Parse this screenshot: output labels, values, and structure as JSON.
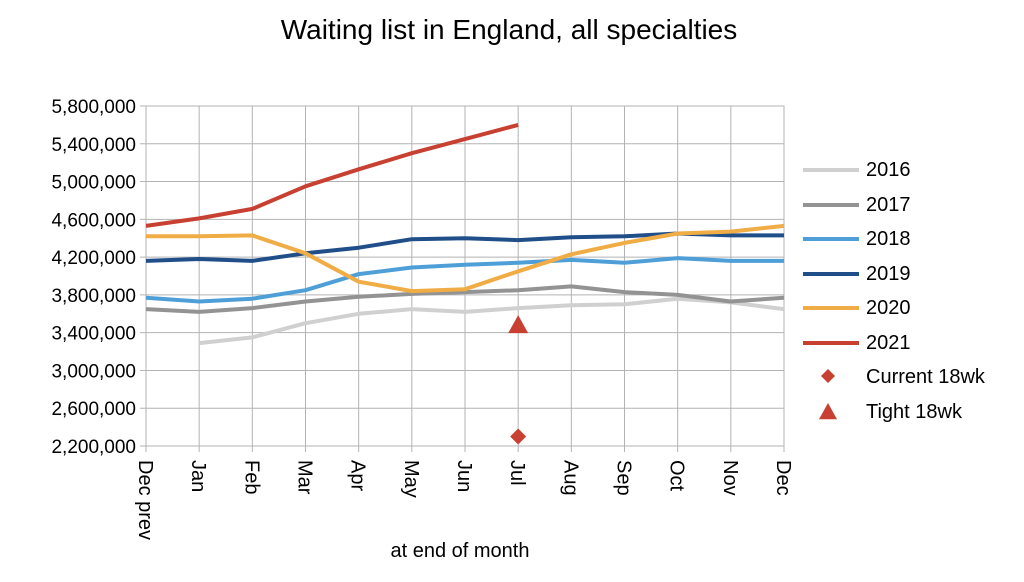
{
  "chart_data": {
    "type": "line",
    "title": "Waiting list in England, all specialties",
    "xlabel": "at end of month",
    "ylabel": "",
    "ylim": [
      2200000,
      5800000
    ],
    "yticks": [
      2200000,
      2600000,
      3000000,
      3400000,
      3800000,
      4200000,
      4600000,
      5000000,
      5400000,
      5800000
    ],
    "ytick_labels": [
      "2,200,000",
      "2,600,000",
      "3,000,000",
      "3,400,000",
      "3,800,000",
      "4,200,000",
      "4,600,000",
      "5,000,000",
      "5,400,000",
      "5,800,000"
    ],
    "categories": [
      "Dec prev",
      "Jan",
      "Feb",
      "Mar",
      "Apr",
      "May",
      "Jun",
      "Jul",
      "Aug",
      "Sep",
      "Oct",
      "Nov",
      "Dec"
    ],
    "grid": true,
    "legend_position": "right",
    "series": [
      {
        "name": "2016",
        "color": "#d0d0d0",
        "kind": "line",
        "values": [
          null,
          3290000,
          3350000,
          3500000,
          3600000,
          3650000,
          3620000,
          3660000,
          3690000,
          3700000,
          3760000,
          3720000,
          3650000
        ]
      },
      {
        "name": "2017",
        "color": "#939393",
        "kind": "line",
        "values": [
          3650000,
          3620000,
          3660000,
          3730000,
          3780000,
          3810000,
          3830000,
          3850000,
          3890000,
          3830000,
          3800000,
          3730000,
          3770000
        ]
      },
      {
        "name": "2018",
        "color": "#4e9fd8",
        "kind": "line",
        "values": [
          3770000,
          3730000,
          3760000,
          3850000,
          4020000,
          4090000,
          4120000,
          4140000,
          4170000,
          4140000,
          4190000,
          4160000,
          4160000
        ]
      },
      {
        "name": "2019",
        "color": "#1f4e89",
        "kind": "line",
        "values": [
          4160000,
          4180000,
          4160000,
          4240000,
          4300000,
          4390000,
          4400000,
          4380000,
          4410000,
          4420000,
          4450000,
          4430000,
          4430000
        ]
      },
      {
        "name": "2020",
        "color": "#f0ac45",
        "kind": "line",
        "values": [
          4420000,
          4420000,
          4430000,
          4240000,
          3940000,
          3840000,
          3860000,
          4050000,
          4230000,
          4350000,
          4450000,
          4470000,
          4530000
        ]
      },
      {
        "name": "2021",
        "color": "#c84031",
        "kind": "line",
        "values": [
          4530000,
          4610000,
          4710000,
          4950000,
          5130000,
          5300000,
          5450000,
          5600000,
          null,
          null,
          null,
          null,
          null
        ]
      },
      {
        "name": "Current 18wk",
        "color": "#c84031",
        "kind": "diamond",
        "points": [
          {
            "category": "Jul",
            "value": 2300000
          }
        ]
      },
      {
        "name": "Tight 18wk",
        "color": "#c84031",
        "kind": "triangle",
        "points": [
          {
            "category": "Jul",
            "value": 3480000
          }
        ]
      }
    ]
  }
}
